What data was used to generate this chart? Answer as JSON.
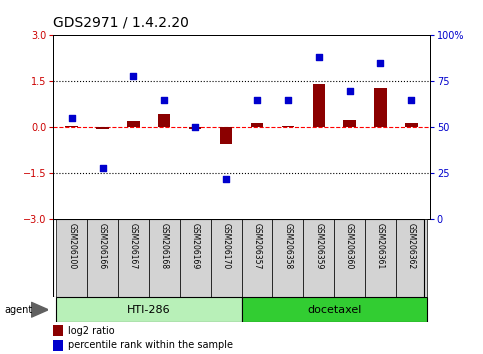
{
  "title": "GDS2971 / 1.4.2.20",
  "samples": [
    "GSM206100",
    "GSM206166",
    "GSM206167",
    "GSM206168",
    "GSM206169",
    "GSM206170",
    "GSM206357",
    "GSM206358",
    "GSM206359",
    "GSM206360",
    "GSM206361",
    "GSM206362"
  ],
  "log2_ratio": [
    0.05,
    -0.05,
    0.2,
    0.45,
    -0.05,
    -0.55,
    0.15,
    0.05,
    1.4,
    0.25,
    1.3,
    0.15
  ],
  "percentile_rank": [
    55,
    28,
    78,
    65,
    50,
    22,
    65,
    65,
    88,
    70,
    85,
    65
  ],
  "groups": [
    {
      "label": "HTI-286",
      "start": 0,
      "end": 5,
      "color": "#90EE90"
    },
    {
      "label": "docetaxel",
      "start": 6,
      "end": 11,
      "color": "#32CD32"
    }
  ],
  "ylim_left": [
    -3,
    3
  ],
  "ylim_right": [
    0,
    100
  ],
  "yticks_left": [
    -3,
    -1.5,
    0,
    1.5,
    3
  ],
  "yticks_right": [
    0,
    25,
    50,
    75,
    100
  ],
  "yticklabels_right": [
    "0",
    "25",
    "50",
    "75",
    "100%"
  ],
  "bar_color": "#8B0000",
  "scatter_color": "#0000CD",
  "bg_color": "#ffffff",
  "plot_bg": "#ffffff",
  "legend_bar_label": "log2 ratio",
  "legend_scatter_label": "percentile rank within the sample",
  "agent_label": "agent",
  "title_fontsize": 10,
  "tick_fontsize": 7,
  "sample_fontsize": 5.5,
  "legend_fontsize": 7,
  "agent_fontsize": 7,
  "group_fontsize": 8,
  "label_color_left": "#cc0000",
  "label_color_right": "#0000cc",
  "cell_color": "#d3d3d3",
  "group1_color": "#b8f0b8",
  "group2_color": "#32cd32"
}
